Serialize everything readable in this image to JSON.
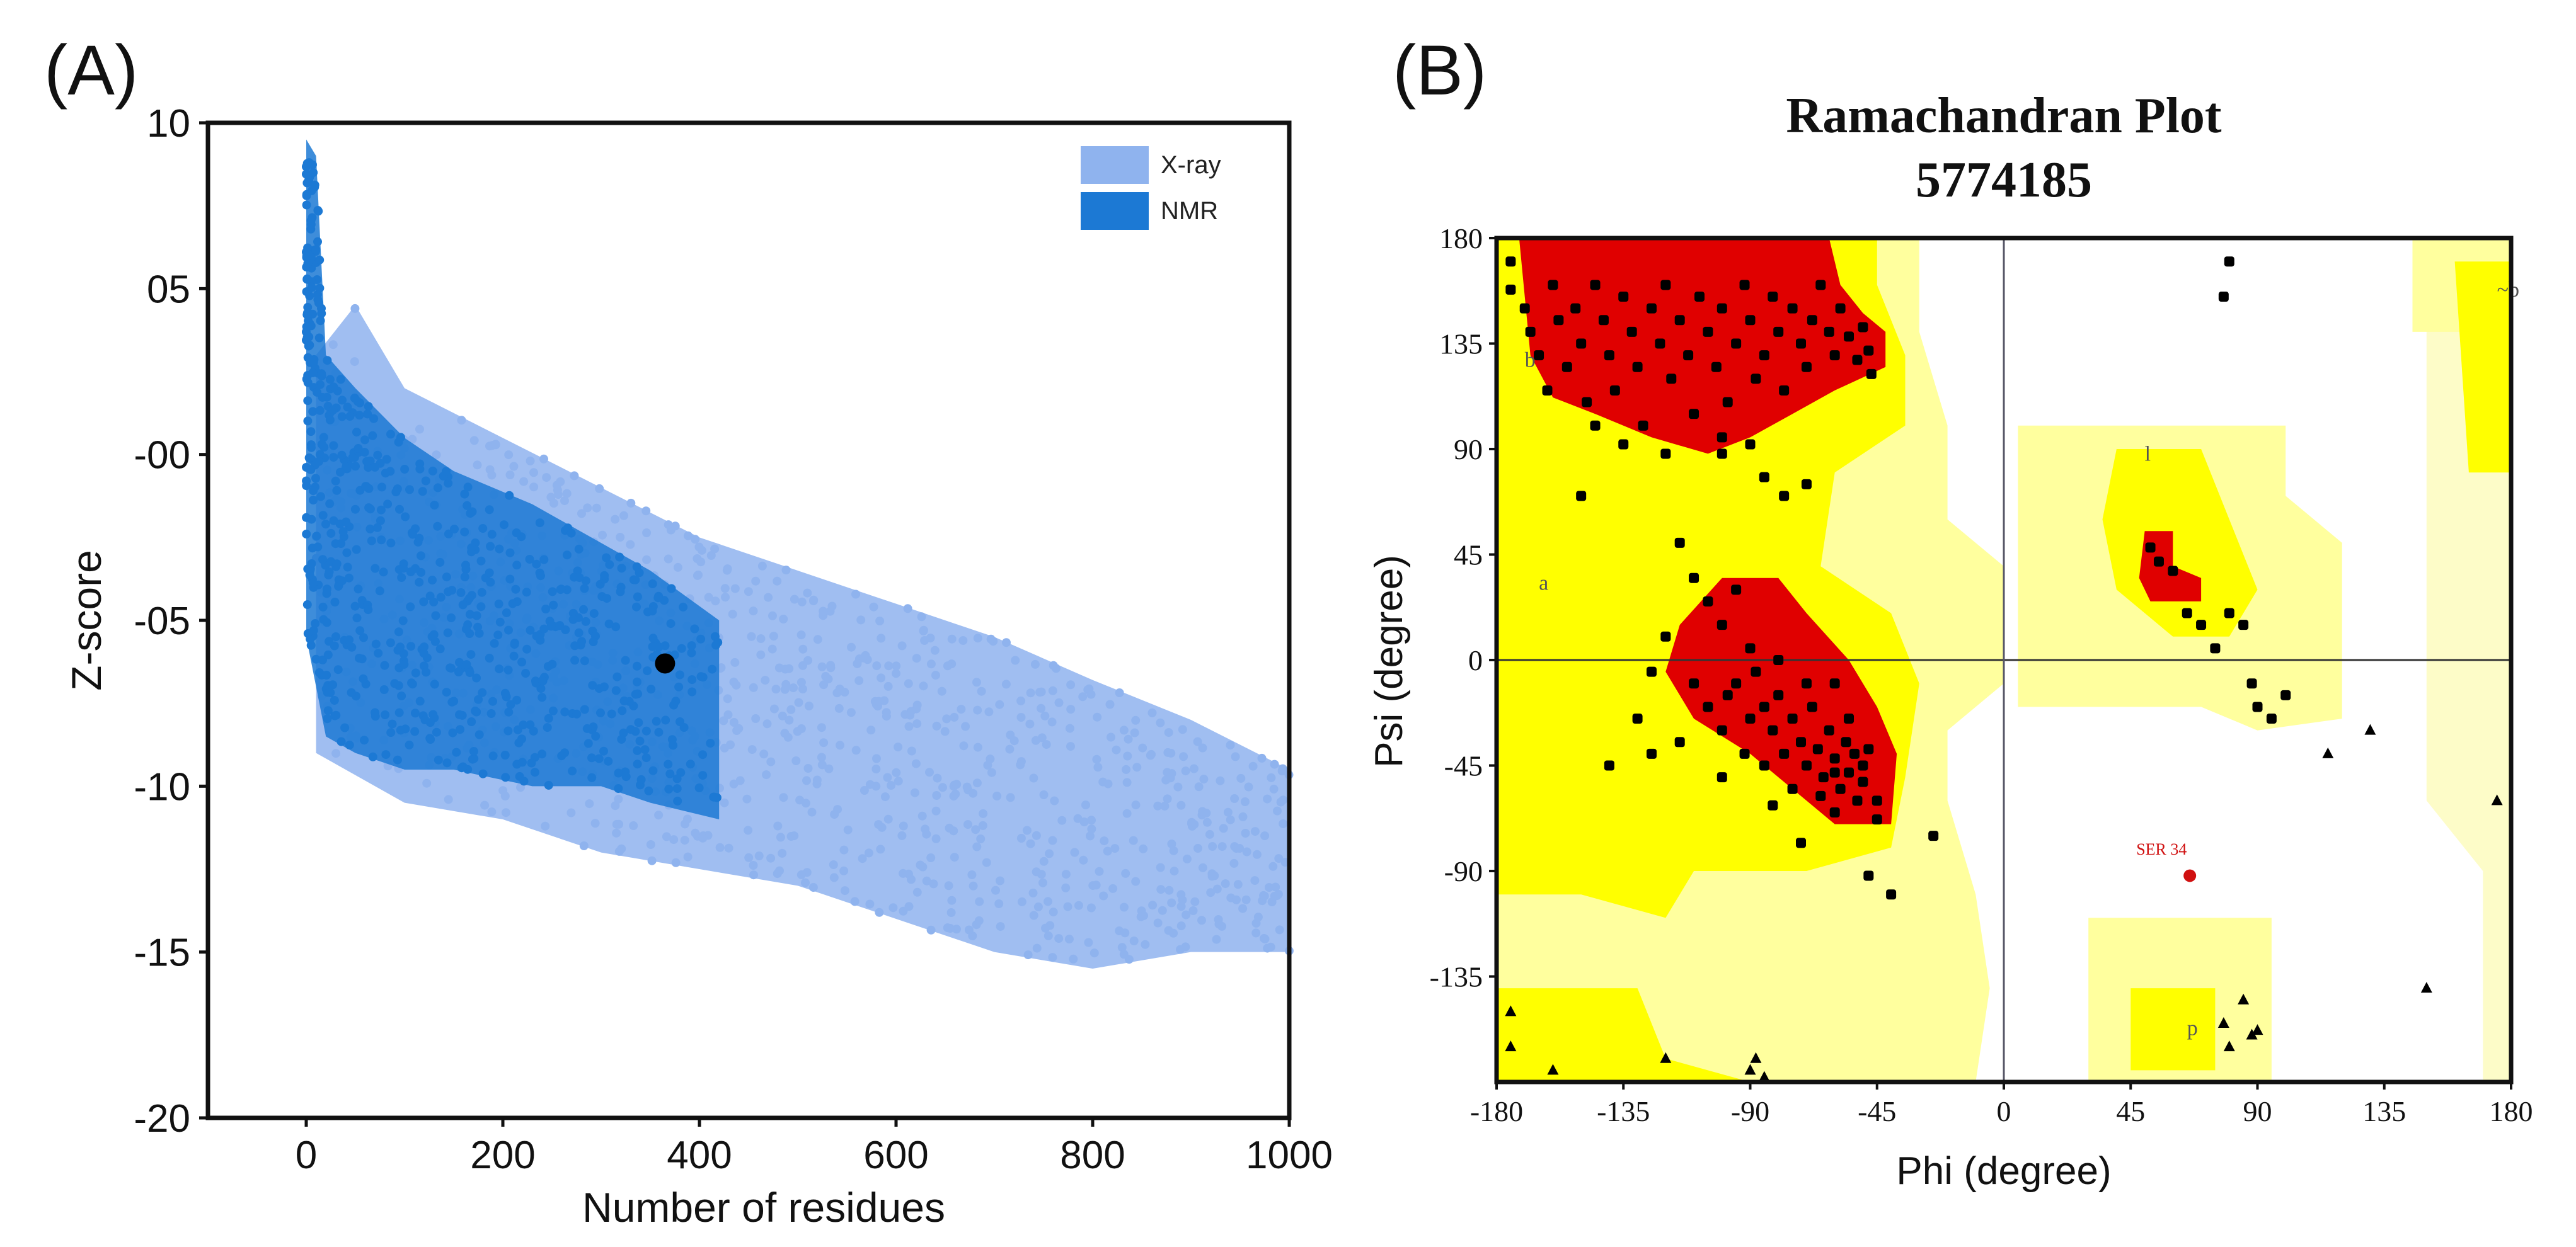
{
  "colors": {
    "xray": "#8fb3ee",
    "nmr": "#1c79d4",
    "core": "#e00000",
    "allowed": "#ffff00",
    "generous": "#ffff9e",
    "generous_light": "#fdfcc8",
    "residue": "#000000",
    "annotation": "#d01010"
  },
  "chart_data": [
    {
      "panel_label": "(A)",
      "type": "scatter",
      "title": "",
      "xlabel": "Number of residues",
      "ylabel": "Z-score",
      "xlim": [
        -100,
        1000
      ],
      "ylim": [
        -20,
        10
      ],
      "x_ticks": [
        0,
        200,
        400,
        600,
        800,
        1000
      ],
      "x_tick_labels": [
        "0",
        "200",
        "400",
        "600",
        "800",
        "1000"
      ],
      "y_ticks": [
        10,
        5,
        0,
        -5,
        -10,
        -15,
        -20
      ],
      "y_tick_labels": [
        "10",
        "05",
        "-00",
        "-05",
        "-10",
        "-15",
        "-20"
      ],
      "legend": {
        "position": "top-right",
        "entries": [
          "X-ray",
          "NMR"
        ]
      },
      "series": [
        {
          "name": "X-ray",
          "description": "dense point cloud bounded by upper/lower envelopes",
          "upper_envelope": [
            [
              10,
              3
            ],
            [
              50,
              4.5
            ],
            [
              100,
              2
            ],
            [
              200,
              0.5
            ],
            [
              300,
              -1
            ],
            [
              400,
              -2.5
            ],
            [
              500,
              -3.5
            ],
            [
              600,
              -4.5
            ],
            [
              700,
              -5.5
            ],
            [
              800,
              -6.8
            ],
            [
              900,
              -8
            ],
            [
              1000,
              -9.5
            ]
          ],
          "lower_envelope": [
            [
              10,
              -9
            ],
            [
              100,
              -10.5
            ],
            [
              200,
              -11
            ],
            [
              300,
              -12
            ],
            [
              400,
              -12.5
            ],
            [
              500,
              -13
            ],
            [
              600,
              -14
            ],
            [
              700,
              -15
            ],
            [
              800,
              -15.5
            ],
            [
              900,
              -15
            ],
            [
              1000,
              -15
            ]
          ]
        },
        {
          "name": "NMR",
          "description": "dense point cloud concentrated at low residue counts",
          "upper_envelope": [
            [
              0,
              9.5
            ],
            [
              10,
              9
            ],
            [
              20,
              3
            ],
            [
              50,
              2
            ],
            [
              100,
              0.5
            ],
            [
              150,
              -0.5
            ],
            [
              230,
              -1.5
            ],
            [
              350,
              -3.5
            ],
            [
              420,
              -5
            ]
          ],
          "lower_envelope": [
            [
              0,
              -5.5
            ],
            [
              20,
              -8.5
            ],
            [
              50,
              -9
            ],
            [
              100,
              -9.5
            ],
            [
              150,
              -9.5
            ],
            [
              230,
              -10
            ],
            [
              300,
              -10
            ],
            [
              350,
              -10.5
            ],
            [
              420,
              -11
            ]
          ]
        }
      ],
      "highlighted_point": {
        "x": 365,
        "y": -6.3
      }
    },
    {
      "panel_label": "(B)",
      "type": "scatter",
      "title": "Ramachandran Plot",
      "subtitle": "5774185",
      "xlabel": "Phi (degree)",
      "ylabel": "Psi (degree)",
      "xlim": [
        -180,
        180
      ],
      "ylim": [
        -180,
        180
      ],
      "x_ticks": [
        -180,
        -135,
        -90,
        -45,
        0,
        45,
        90,
        135,
        180
      ],
      "x_tick_labels": [
        "-180",
        "-135",
        "-90",
        "-45",
        "0",
        "45",
        "90",
        "135",
        "180"
      ],
      "y_ticks": [
        180,
        135,
        90,
        45,
        0,
        -45,
        -90,
        -135
      ],
      "y_tick_labels": [
        "180",
        "135",
        "90",
        "45",
        "0",
        "-45",
        "-90",
        "-135"
      ],
      "region_labels": [
        {
          "text": "b",
          "phi": -170,
          "psi": 125
        },
        {
          "text": "a",
          "phi": -165,
          "psi": 30
        },
        {
          "text": "l",
          "phi": 50,
          "psi": 85
        },
        {
          "text": "p",
          "phi": 65,
          "psi": -160
        },
        {
          "text": "~b",
          "phi": 175,
          "psi": 155
        }
      ],
      "annotation": {
        "text": "SER 34",
        "phi": 65,
        "psi": -87
      },
      "residues": [
        [
          -170,
          150
        ],
        [
          -168,
          140
        ],
        [
          -165,
          130
        ],
        [
          -160,
          160
        ],
        [
          -158,
          145
        ],
        [
          -155,
          125
        ],
        [
          -152,
          150
        ],
        [
          -150,
          135
        ],
        [
          -148,
          110
        ],
        [
          -145,
          160
        ],
        [
          -142,
          145
        ],
        [
          -140,
          130
        ],
        [
          -138,
          115
        ],
        [
          -135,
          155
        ],
        [
          -132,
          140
        ],
        [
          -130,
          125
        ],
        [
          -128,
          100
        ],
        [
          -125,
          150
        ],
        [
          -122,
          135
        ],
        [
          -120,
          160
        ],
        [
          -118,
          120
        ],
        [
          -115,
          145
        ],
        [
          -112,
          130
        ],
        [
          -110,
          105
        ],
        [
          -108,
          155
        ],
        [
          -105,
          140
        ],
        [
          -102,
          125
        ],
        [
          -100,
          150
        ],
        [
          -98,
          110
        ],
        [
          -95,
          135
        ],
        [
          -92,
          160
        ],
        [
          -90,
          145
        ],
        [
          -88,
          120
        ],
        [
          -85,
          130
        ],
        [
          -82,
          155
        ],
        [
          -80,
          140
        ],
        [
          -78,
          115
        ],
        [
          -75,
          150
        ],
        [
          -72,
          135
        ],
        [
          -70,
          125
        ],
        [
          -68,
          145
        ],
        [
          -65,
          160
        ],
        [
          -62,
          140
        ],
        [
          -60,
          130
        ],
        [
          -58,
          150
        ],
        [
          -55,
          138
        ],
        [
          -52,
          128
        ],
        [
          -50,
          142
        ],
        [
          -48,
          132
        ],
        [
          -47,
          122
        ],
        [
          -175,
          158
        ],
        [
          -162,
          115
        ],
        [
          -145,
          100
        ],
        [
          -135,
          92
        ],
        [
          -120,
          88
        ],
        [
          -100,
          95
        ],
        [
          -90,
          92
        ],
        [
          -85,
          78
        ],
        [
          -78,
          70
        ],
        [
          -70,
          75
        ],
        [
          -150,
          70
        ],
        [
          -115,
          50
        ],
        [
          -110,
          35
        ],
        [
          -105,
          25
        ],
        [
          -100,
          15
        ],
        [
          -95,
          30
        ],
        [
          -120,
          10
        ],
        [
          -125,
          -5
        ],
        [
          -130,
          -25
        ],
        [
          -140,
          -45
        ],
        [
          -125,
          -40
        ],
        [
          -115,
          -35
        ],
        [
          -105,
          -20
        ],
        [
          -98,
          -15
        ],
        [
          -95,
          -10
        ],
        [
          -90,
          -25
        ],
        [
          -88,
          -5
        ],
        [
          -85,
          -20
        ],
        [
          -82,
          -30
        ],
        [
          -80,
          -15
        ],
        [
          -78,
          -40
        ],
        [
          -75,
          -25
        ],
        [
          -72,
          -35
        ],
        [
          -70,
          -45
        ],
        [
          -68,
          -20
        ],
        [
          -66,
          -38
        ],
        [
          -64,
          -50
        ],
        [
          -62,
          -30
        ],
        [
          -60,
          -42
        ],
        [
          -58,
          -55
        ],
        [
          -56,
          -35
        ],
        [
          -55,
          -48
        ],
        [
          -53,
          -40
        ],
        [
          -52,
          -60
        ],
        [
          -50,
          -45
        ],
        [
          -48,
          -38
        ],
        [
          -60,
          -65
        ],
        [
          -65,
          -58
        ],
        [
          -75,
          -55
        ],
        [
          -85,
          -45
        ],
        [
          -100,
          -30
        ],
        [
          -92,
          -40
        ],
        [
          -70,
          -10
        ],
        [
          -110,
          -10
        ],
        [
          -90,
          5
        ],
        [
          -80,
          0
        ],
        [
          -100,
          -50
        ],
        [
          -60,
          -10
        ],
        [
          -55,
          -25
        ],
        [
          -50,
          -52
        ],
        [
          52,
          48
        ],
        [
          55,
          42
        ],
        [
          60,
          38
        ],
        [
          65,
          20
        ],
        [
          70,
          15
        ],
        [
          75,
          5
        ],
        [
          80,
          20
        ],
        [
          85,
          15
        ],
        [
          88,
          -10
        ],
        [
          90,
          -20
        ],
        [
          95,
          -25
        ],
        [
          115,
          -40
        ],
        [
          130,
          -30
        ],
        [
          100,
          -15
        ],
        [
          -40,
          -100
        ],
        [
          -25,
          -75
        ],
        [
          85,
          -145
        ],
        [
          78,
          -155
        ],
        [
          80,
          -165
        ],
        [
          88,
          -160
        ],
        [
          90,
          -158
        ],
        [
          150,
          -140
        ],
        [
          175,
          -60
        ],
        [
          -175,
          -150
        ],
        [
          -175,
          -165
        ],
        [
          -160,
          -175
        ],
        [
          -120,
          -170
        ],
        [
          -90,
          -175
        ],
        [
          -85,
          -178
        ],
        [
          -88,
          -170
        ],
        [
          80,
          170
        ],
        [
          78,
          155
        ],
        [
          -175,
          170
        ],
        [
          -100,
          88
        ],
        [
          -60,
          -48
        ],
        [
          -45,
          -60
        ],
        [
          -48,
          -92
        ],
        [
          -45,
          -68
        ],
        [
          -72,
          -78
        ],
        [
          -82,
          -62
        ]
      ]
    }
  ]
}
